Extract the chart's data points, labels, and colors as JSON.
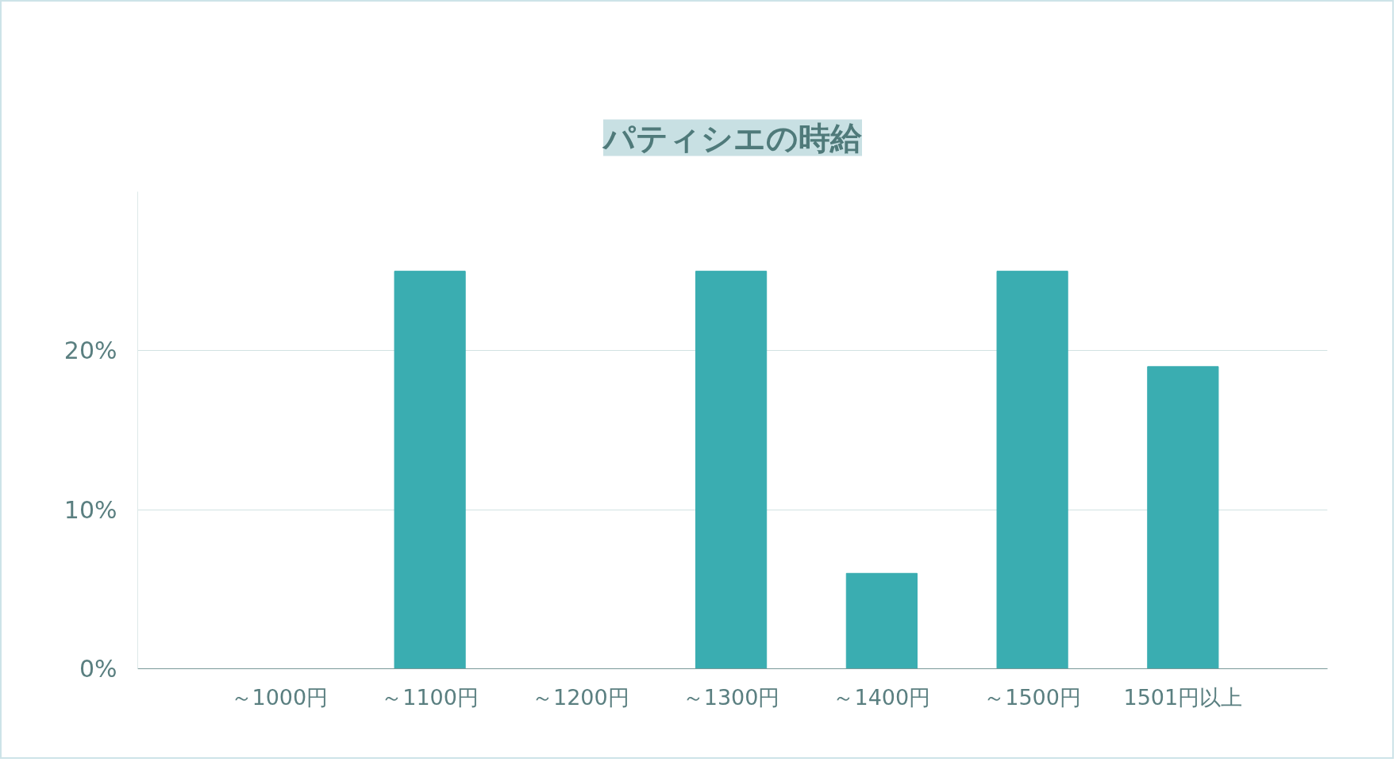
{
  "chart_data": {
    "type": "bar",
    "title": "パティシエの時給",
    "categories": [
      "～1000円",
      "～1100円",
      "～1200円",
      "～1300円",
      "～1400円",
      "～1500円",
      "1501円以上"
    ],
    "values": [
      0,
      25,
      0,
      25,
      6,
      25,
      19
    ],
    "ylim": [
      0,
      30
    ],
    "color": "#3aadb1",
    "yticks": [
      {
        "value": 0,
        "label": "0%"
      },
      {
        "value": 10,
        "label": "10%"
      },
      {
        "value": 20,
        "label": "20%"
      }
    ],
    "grid": "y"
  }
}
